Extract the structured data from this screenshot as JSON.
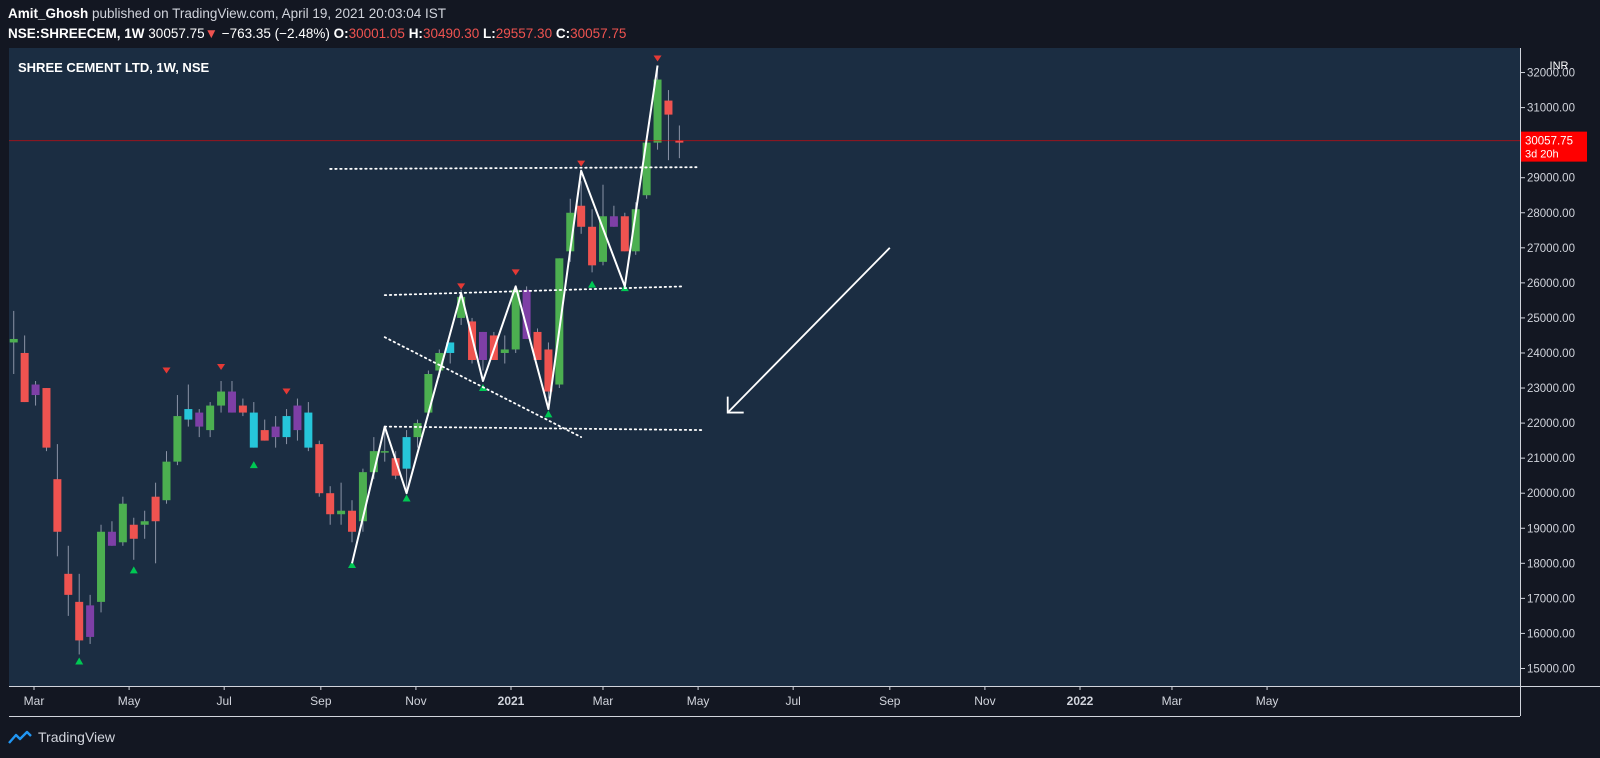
{
  "header": {
    "author": "Amit_Ghosh",
    "published_text": "published on TradingView.com, April 19, 2021 20:03:04 IST",
    "symbol": "NSE:SHREECEM, 1W",
    "last": "30057.75",
    "change_arrow": "▼",
    "change": "−763.35 (−2.48%)",
    "o_label": "O:",
    "o_value": "30001.05",
    "h_label": "H:",
    "h_value": "30490.30",
    "l_label": "L:",
    "l_value": "29557.30",
    "c_label": "C:",
    "c_value": "30057.75"
  },
  "footer": {
    "brand": "TradingView"
  },
  "colors": {
    "background": "#131722",
    "plot_background": "#1b2d42",
    "up": "#4caf50",
    "down": "#ef5350",
    "alt_up": "#26c6da",
    "alt_down": "#7e3fa6",
    "current_price": "#ff0000",
    "annotation": "#ffffff"
  },
  "chart_data": {
    "type": "candlestick",
    "title": "SHREE CEMENT LTD, 1W, NSE",
    "currency": "INR",
    "ylim": [
      14500,
      32700
    ],
    "y_ticks": [
      "15000.00",
      "16000.00",
      "17000.00",
      "18000.00",
      "19000.00",
      "20000.00",
      "21000.00",
      "22000.00",
      "23000.00",
      "24000.00",
      "25000.00",
      "26000.00",
      "27000.00",
      "28000.00",
      "29000.00",
      "30000.00",
      "31000.00",
      "32000.00"
    ],
    "x_ticks": [
      {
        "label": "Mar",
        "date": "2020-03-01"
      },
      {
        "label": "May",
        "date": "2020-05-01"
      },
      {
        "label": "Jul",
        "date": "2020-07-01"
      },
      {
        "label": "Sep",
        "date": "2020-09-01"
      },
      {
        "label": "Nov",
        "date": "2020-11-01"
      },
      {
        "label": "2021",
        "date": "2021-01-01"
      },
      {
        "label": "Mar",
        "date": "2021-03-01"
      },
      {
        "label": "May",
        "date": "2021-05-01"
      },
      {
        "label": "Jul",
        "date": "2021-07-01"
      },
      {
        "label": "Sep",
        "date": "2021-09-01"
      },
      {
        "label": "Nov",
        "date": "2021-11-01"
      },
      {
        "label": "2022",
        "date": "2022-01-01"
      },
      {
        "label": "Mar",
        "date": "2022-03-01"
      },
      {
        "label": "May",
        "date": "2022-05-01"
      }
    ],
    "current_price": {
      "value": 30057.75,
      "label": "30057.75",
      "countdown": "3d 20h"
    },
    "candles": [
      {
        "date": "2020-02-17",
        "o": 24300,
        "h": 25200,
        "l": 23400,
        "c": 24400,
        "color": "up"
      },
      {
        "date": "2020-02-24",
        "o": 24000,
        "h": 24500,
        "l": 22600,
        "c": 22600,
        "color": "down"
      },
      {
        "date": "2020-03-02",
        "o": 22800,
        "h": 23200,
        "l": 22500,
        "c": 23100,
        "color": "alt_down"
      },
      {
        "date": "2020-03-09",
        "o": 23000,
        "h": 23000,
        "l": 21200,
        "c": 21300,
        "color": "down"
      },
      {
        "date": "2020-03-16",
        "o": 20400,
        "h": 21400,
        "l": 18200,
        "c": 18900,
        "color": "down"
      },
      {
        "date": "2020-03-23",
        "o": 17700,
        "h": 18500,
        "l": 16500,
        "c": 17100,
        "color": "down"
      },
      {
        "date": "2020-03-30",
        "o": 16900,
        "h": 17700,
        "l": 15400,
        "c": 15800,
        "color": "down"
      },
      {
        "date": "2020-04-06",
        "o": 15900,
        "h": 17100,
        "l": 15700,
        "c": 16800,
        "color": "alt_down"
      },
      {
        "date": "2020-04-13",
        "o": 16900,
        "h": 19100,
        "l": 16600,
        "c": 18900,
        "color": "up"
      },
      {
        "date": "2020-04-20",
        "o": 18900,
        "h": 19200,
        "l": 18500,
        "c": 18500,
        "color": "alt_down"
      },
      {
        "date": "2020-04-27",
        "o": 18600,
        "h": 19900,
        "l": 18500,
        "c": 19700,
        "color": "up"
      },
      {
        "date": "2020-05-04",
        "o": 19100,
        "h": 19300,
        "l": 18100,
        "c": 18700,
        "color": "down"
      },
      {
        "date": "2020-05-11",
        "o": 19100,
        "h": 19500,
        "l": 18700,
        "c": 19200,
        "color": "up"
      },
      {
        "date": "2020-05-18",
        "o": 19900,
        "h": 20300,
        "l": 18000,
        "c": 19200,
        "color": "down"
      },
      {
        "date": "2020-05-25",
        "o": 19800,
        "h": 21200,
        "l": 19700,
        "c": 20900,
        "color": "up"
      },
      {
        "date": "2020-06-01",
        "o": 20900,
        "h": 22800,
        "l": 20800,
        "c": 22200,
        "color": "up"
      },
      {
        "date": "2020-06-08",
        "o": 22100,
        "h": 23100,
        "l": 21900,
        "c": 22400,
        "color": "alt_up"
      },
      {
        "date": "2020-06-15",
        "o": 22300,
        "h": 22400,
        "l": 21600,
        "c": 21900,
        "color": "alt_down"
      },
      {
        "date": "2020-06-22",
        "o": 21800,
        "h": 22600,
        "l": 21600,
        "c": 22500,
        "color": "up"
      },
      {
        "date": "2020-06-29",
        "o": 22500,
        "h": 23200,
        "l": 22300,
        "c": 22900,
        "color": "up"
      },
      {
        "date": "2020-07-06",
        "o": 22900,
        "h": 23200,
        "l": 22300,
        "c": 22300,
        "color": "alt_down"
      },
      {
        "date": "2020-07-13",
        "o": 22500,
        "h": 22700,
        "l": 22200,
        "c": 22300,
        "color": "down"
      },
      {
        "date": "2020-07-20",
        "o": 22300,
        "h": 22600,
        "l": 21300,
        "c": 21300,
        "color": "alt_up"
      },
      {
        "date": "2020-07-27",
        "o": 21800,
        "h": 22100,
        "l": 21500,
        "c": 21500,
        "color": "down"
      },
      {
        "date": "2020-08-03",
        "o": 21600,
        "h": 22200,
        "l": 21300,
        "c": 21900,
        "color": "alt_down"
      },
      {
        "date": "2020-08-10",
        "o": 21600,
        "h": 22400,
        "l": 21400,
        "c": 22200,
        "color": "alt_up"
      },
      {
        "date": "2020-08-17",
        "o": 21800,
        "h": 22700,
        "l": 21500,
        "c": 22500,
        "color": "alt_down"
      },
      {
        "date": "2020-08-24",
        "o": 22300,
        "h": 22600,
        "l": 21200,
        "c": 21300,
        "color": "alt_up"
      },
      {
        "date": "2020-08-31",
        "o": 21400,
        "h": 21500,
        "l": 19900,
        "c": 20000,
        "color": "down"
      },
      {
        "date": "2020-09-07",
        "o": 20000,
        "h": 20200,
        "l": 19100,
        "c": 19400,
        "color": "down"
      },
      {
        "date": "2020-09-14",
        "o": 19400,
        "h": 20300,
        "l": 19100,
        "c": 19500,
        "color": "up"
      },
      {
        "date": "2020-09-21",
        "o": 19500,
        "h": 19800,
        "l": 18600,
        "c": 18900,
        "color": "down"
      },
      {
        "date": "2020-09-28",
        "o": 19200,
        "h": 20700,
        "l": 18900,
        "c": 20600,
        "color": "up"
      },
      {
        "date": "2020-10-05",
        "o": 20600,
        "h": 21600,
        "l": 20400,
        "c": 21200,
        "color": "up"
      },
      {
        "date": "2020-10-12",
        "o": 21200,
        "h": 21900,
        "l": 20900,
        "c": 21200,
        "color": "up"
      },
      {
        "date": "2020-10-19",
        "o": 21000,
        "h": 21200,
        "l": 20400,
        "c": 20500,
        "color": "down"
      },
      {
        "date": "2020-10-26",
        "o": 20700,
        "h": 21800,
        "l": 20100,
        "c": 21600,
        "color": "alt_up"
      },
      {
        "date": "2020-11-02",
        "o": 21600,
        "h": 22100,
        "l": 21300,
        "c": 22000,
        "color": "up"
      },
      {
        "date": "2020-11-09",
        "o": 22300,
        "h": 23500,
        "l": 22200,
        "c": 23400,
        "color": "up"
      },
      {
        "date": "2020-11-16",
        "o": 23500,
        "h": 24100,
        "l": 23300,
        "c": 24000,
        "color": "up"
      },
      {
        "date": "2020-11-23",
        "o": 24000,
        "h": 24300,
        "l": 23700,
        "c": 24300,
        "color": "alt_up"
      },
      {
        "date": "2020-11-30",
        "o": 25000,
        "h": 25800,
        "l": 24800,
        "c": 25600,
        "color": "up"
      },
      {
        "date": "2020-12-07",
        "o": 24900,
        "h": 25000,
        "l": 23700,
        "c": 23800,
        "color": "down"
      },
      {
        "date": "2020-12-14",
        "o": 23800,
        "h": 24600,
        "l": 23500,
        "c": 24600,
        "color": "alt_down"
      },
      {
        "date": "2020-12-21",
        "o": 24500,
        "h": 24600,
        "l": 23800,
        "c": 23800,
        "color": "down"
      },
      {
        "date": "2020-12-28",
        "o": 24100,
        "h": 24500,
        "l": 23700,
        "c": 24000,
        "color": "up"
      },
      {
        "date": "2021-01-04",
        "o": 24100,
        "h": 25900,
        "l": 24000,
        "c": 25800,
        "color": "up"
      },
      {
        "date": "2021-01-11",
        "o": 25800,
        "h": 25900,
        "l": 24400,
        "c": 24400,
        "color": "alt_down"
      },
      {
        "date": "2021-01-18",
        "o": 24600,
        "h": 24700,
        "l": 23800,
        "c": 23800,
        "color": "down"
      },
      {
        "date": "2021-01-25",
        "o": 24100,
        "h": 24300,
        "l": 22700,
        "c": 22900,
        "color": "down"
      },
      {
        "date": "2021-02-01",
        "o": 23100,
        "h": 26700,
        "l": 23000,
        "c": 26700,
        "color": "up"
      },
      {
        "date": "2021-02-08",
        "o": 26900,
        "h": 28400,
        "l": 26600,
        "c": 28000,
        "color": "up"
      },
      {
        "date": "2021-02-15",
        "o": 28200,
        "h": 28900,
        "l": 27400,
        "c": 27600,
        "color": "down"
      },
      {
        "date": "2021-02-22",
        "o": 27600,
        "h": 28100,
        "l": 26300,
        "c": 26500,
        "color": "down"
      },
      {
        "date": "2021-03-01",
        "o": 26600,
        "h": 28800,
        "l": 26500,
        "c": 27900,
        "color": "up"
      },
      {
        "date": "2021-03-08",
        "o": 27900,
        "h": 28200,
        "l": 27600,
        "c": 27600,
        "color": "alt_down"
      },
      {
        "date": "2021-03-15",
        "o": 27900,
        "h": 28000,
        "l": 26900,
        "c": 26900,
        "color": "down"
      },
      {
        "date": "2021-03-22",
        "o": 26900,
        "h": 28300,
        "l": 26800,
        "c": 28100,
        "color": "up"
      },
      {
        "date": "2021-03-29",
        "o": 28500,
        "h": 30000,
        "l": 28400,
        "c": 30000,
        "color": "up"
      },
      {
        "date": "2021-04-05",
        "o": 30000,
        "h": 32200,
        "l": 29800,
        "c": 31800,
        "color": "up"
      },
      {
        "date": "2021-04-12",
        "o": 31200,
        "h": 31500,
        "l": 29500,
        "c": 30800,
        "color": "down"
      },
      {
        "date": "2021-04-19",
        "o": 30001.05,
        "h": 30490.3,
        "l": 29557.3,
        "c": 30057.75,
        "color": "down"
      }
    ],
    "pivot_highs": [
      {
        "date": "2020-05-25",
        "y": 23500
      },
      {
        "date": "2020-06-29",
        "y": 23600
      },
      {
        "date": "2020-08-10",
        "y": 22900
      },
      {
        "date": "2020-11-30",
        "y": 25900
      },
      {
        "date": "2021-01-04",
        "y": 26300
      },
      {
        "date": "2021-02-15",
        "y": 29400
      },
      {
        "date": "2021-04-05",
        "y": 32400
      }
    ],
    "pivot_lows": [
      {
        "date": "2020-03-30",
        "y": 15200
      },
      {
        "date": "2020-05-04",
        "y": 17800
      },
      {
        "date": "2020-07-20",
        "y": 20800
      },
      {
        "date": "2020-09-21",
        "y": 17950
      },
      {
        "date": "2020-10-26",
        "y": 19850
      },
      {
        "date": "2020-12-14",
        "y": 23000
      },
      {
        "date": "2021-01-25",
        "y": 22250
      },
      {
        "date": "2021-02-22",
        "y": 25950
      },
      {
        "date": "2021-03-15",
        "y": 25850
      }
    ],
    "zigzag": [
      {
        "date": "2020-09-21",
        "y": 18000
      },
      {
        "date": "2020-10-12",
        "y": 21900
      },
      {
        "date": "2020-10-26",
        "y": 20000
      },
      {
        "date": "2020-11-30",
        "y": 25700
      },
      {
        "date": "2020-12-14",
        "y": 23200
      },
      {
        "date": "2021-01-04",
        "y": 25900
      },
      {
        "date": "2021-01-25",
        "y": 22400
      },
      {
        "date": "2021-02-15",
        "y": 29200
      },
      {
        "date": "2021-03-15",
        "y": 25900
      },
      {
        "date": "2021-04-05",
        "y": 32200
      }
    ],
    "dotted_lines": [
      {
        "from": {
          "date": "2020-09-07",
          "y": 29250
        },
        "to": {
          "date": "2021-04-30",
          "y": 29300
        }
      },
      {
        "from": {
          "date": "2020-10-12",
          "y": 25650
        },
        "to": {
          "date": "2021-04-22",
          "y": 25900
        }
      },
      {
        "from": {
          "date": "2020-10-12",
          "y": 24450
        },
        "to": {
          "date": "2021-02-15",
          "y": 21600
        }
      },
      {
        "from": {
          "date": "2020-10-12",
          "y": 21900
        },
        "to": {
          "date": "2021-05-05",
          "y": 21800
        }
      }
    ],
    "arrow": {
      "from": {
        "date": "2021-09-01",
        "y": 27000
      },
      "to": {
        "date": "2021-05-20",
        "y": 22300
      }
    }
  }
}
